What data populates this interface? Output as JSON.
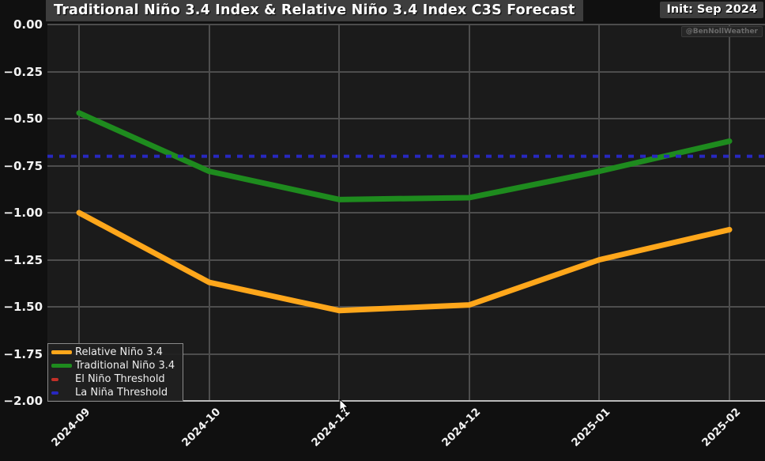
{
  "header": {
    "title": "Traditional Niño 3.4 Index & Relative Niño 3.4 Index C3S Forecast",
    "init_label": "Init: Sep 2024",
    "watermark": "@BenNollWeather"
  },
  "chart_data": {
    "type": "line",
    "title": "Traditional Niño 3.4 Index & Relative Niño 3.4 Index C3S Forecast",
    "x": [
      "2024-09",
      "2024-10",
      "2024-11",
      "2024-12",
      "2025-01",
      "2025-02"
    ],
    "series": [
      {
        "name": "Relative Niño 3.4",
        "color": "#FFA71B",
        "values": [
          -1.0,
          -1.37,
          -1.52,
          -1.49,
          -1.25,
          -1.09
        ]
      },
      {
        "name": "Traditional Niño 3.4",
        "color": "#1E8B1E",
        "values": [
          -0.47,
          -0.78,
          -0.93,
          -0.92,
          -0.78,
          -0.62
        ]
      }
    ],
    "thresholds": [
      {
        "name": "El Niño Threshold",
        "color": "#C33028",
        "style": "dashed",
        "value": null,
        "visible_in_range": false
      },
      {
        "name": "La Niña Threshold",
        "color": "#2828C0",
        "style": "dashed",
        "value": -0.7,
        "visible_in_range": true
      }
    ],
    "ylim": [
      -2.0,
      0.0
    ],
    "ytick_step": 0.25,
    "ytick_labels": [
      "0.00",
      "−0.25",
      "−0.50",
      "−0.75",
      "−1.00",
      "−1.25",
      "−1.50",
      "−1.75",
      "−2.00"
    ],
    "grid": true,
    "legend_position": "lower-left"
  }
}
